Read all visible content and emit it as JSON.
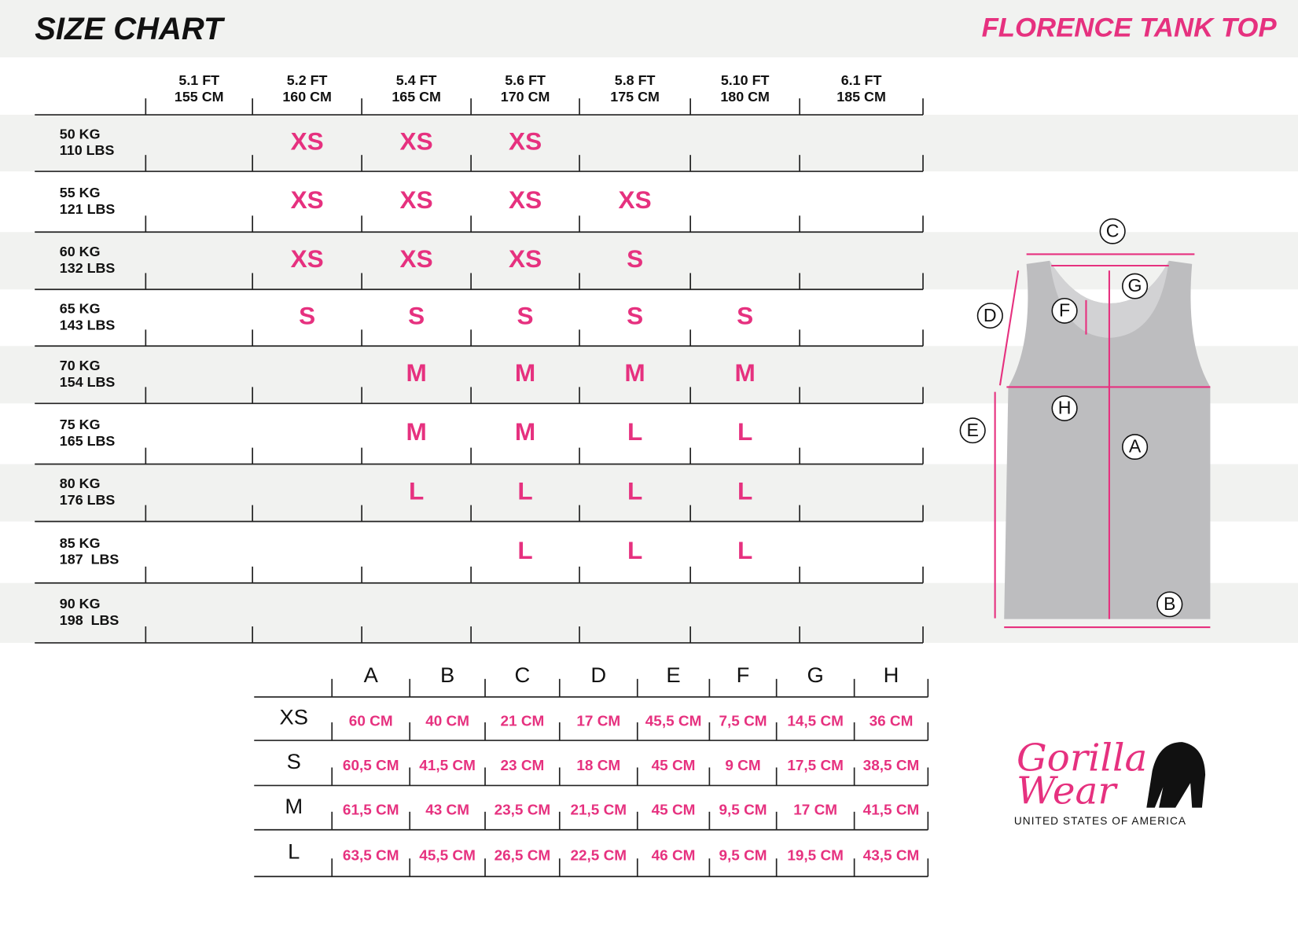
{
  "header": {
    "title": "SIZE CHART",
    "product": "FLORENCE TANK TOP"
  },
  "size_table": {
    "columns": [
      [
        "5.1 FT",
        "155 CM"
      ],
      [
        "5.2 FT",
        "160 CM"
      ],
      [
        "5.4 FT",
        "165 CM"
      ],
      [
        "5.6 FT",
        "170 CM"
      ],
      [
        "5.8 FT",
        "175 CM"
      ],
      [
        "5.10 FT",
        "180 CM"
      ],
      [
        "6.1 FT",
        "185 CM"
      ]
    ],
    "rows": [
      {
        "label": [
          "50 KG",
          "110 LBS"
        ],
        "cells": [
          null,
          "XS",
          "XS",
          "XS",
          null,
          null,
          null
        ]
      },
      {
        "label": [
          "55 KG",
          "121 LBS"
        ],
        "cells": [
          null,
          "XS",
          "XS",
          "XS",
          "XS",
          null,
          null
        ]
      },
      {
        "label": [
          "60 KG",
          "132 LBS"
        ],
        "cells": [
          null,
          "XS",
          "XS",
          "XS",
          "S",
          null,
          null
        ]
      },
      {
        "label": [
          "65 KG",
          "143 LBS"
        ],
        "cells": [
          null,
          "S",
          "S",
          "S",
          "S",
          "S",
          null
        ]
      },
      {
        "label": [
          "70 KG",
          "154 LBS"
        ],
        "cells": [
          null,
          null,
          "M",
          "M",
          "M",
          "M",
          null
        ]
      },
      {
        "label": [
          "75 KG",
          "165 LBS"
        ],
        "cells": [
          null,
          null,
          "M",
          "M",
          "L",
          "L",
          null
        ]
      },
      {
        "label": [
          "80 KG",
          "176 LBS"
        ],
        "cells": [
          null,
          null,
          "L",
          "L",
          "L",
          "L",
          null
        ]
      },
      {
        "label": [
          "85 KG",
          "187  LBS"
        ],
        "cells": [
          null,
          null,
          null,
          "L",
          "L",
          "L",
          null
        ]
      },
      {
        "label": [
          "90 KG",
          "198  LBS"
        ],
        "cells": [
          null,
          null,
          null,
          null,
          null,
          null,
          null
        ]
      }
    ]
  },
  "measure_table": {
    "columns": [
      "A",
      "B",
      "C",
      "D",
      "E",
      "F",
      "G",
      "H"
    ],
    "rows": [
      {
        "size": "XS",
        "values": [
          "60 CM",
          "40 CM",
          "21 CM",
          "17 CM",
          "45,5 CM",
          "7,5 CM",
          "14,5 CM",
          "36 CM"
        ]
      },
      {
        "size": "S",
        "values": [
          "60,5 CM",
          "41,5 CM",
          "23 CM",
          "18 CM",
          "45 CM",
          "9 CM",
          "17,5 CM",
          "38,5 CM"
        ]
      },
      {
        "size": "M",
        "values": [
          "61,5 CM",
          "43 CM",
          "23,5 CM",
          "21,5 CM",
          "45 CM",
          "9,5 CM",
          "17 CM",
          "41,5 CM"
        ]
      },
      {
        "size": "L",
        "values": [
          "63,5 CM",
          "45,5 CM",
          "26,5 CM",
          "22,5 CM",
          "46 CM",
          "9,5 CM",
          "19,5 CM",
          "43,5 CM"
        ]
      }
    ]
  },
  "diagram": {
    "labels": [
      "A",
      "B",
      "C",
      "D",
      "E",
      "F",
      "G",
      "H"
    ]
  },
  "logo": {
    "line1": "Gorilla",
    "line2": "Wear",
    "tagline": "UNITED STATES OF AMERICA"
  }
}
